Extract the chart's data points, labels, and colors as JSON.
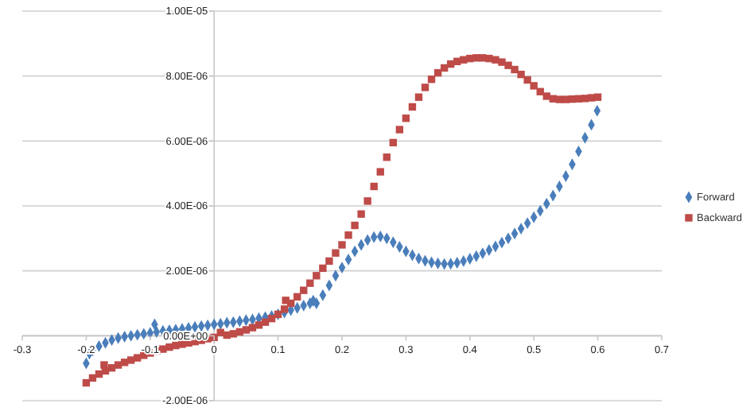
{
  "chart_data": {
    "type": "scatter",
    "xlim": [
      -0.3,
      0.7
    ],
    "xticks": [
      -0.3,
      -0.2,
      -0.1,
      0,
      0.1,
      0.2,
      0.3,
      0.4,
      0.5,
      0.6,
      0.7
    ],
    "ylim": [
      -2e-06,
      1e-05
    ],
    "yticks": [
      {
        "value": -2e-06,
        "label": "-2.00E-06"
      },
      {
        "value": 0,
        "label": "0.00E+00"
      },
      {
        "value": 2e-06,
        "label": "2.00E-06"
      },
      {
        "value": 4e-06,
        "label": "4.00E-06"
      },
      {
        "value": 6e-06,
        "label": "6.00E-06"
      },
      {
        "value": 8e-06,
        "label": "8.00E-06"
      },
      {
        "value": 1e-05,
        "label": "1.00E-05"
      }
    ],
    "grid": "y",
    "legend": "right",
    "series": [
      {
        "name": "Forward",
        "color": "#4a7ebb",
        "marker": "diamond",
        "x": [
          -0.2,
          -0.195,
          -0.19,
          -0.18,
          -0.17,
          -0.16,
          -0.15,
          -0.14,
          -0.13,
          -0.12,
          -0.11,
          -0.1,
          -0.093,
          -0.09,
          -0.08,
          -0.07,
          -0.06,
          -0.05,
          -0.04,
          -0.03,
          -0.02,
          -0.01,
          0,
          0.01,
          0.02,
          0.03,
          0.04,
          0.05,
          0.06,
          0.07,
          0.08,
          0.09,
          0.1,
          0.11,
          0.12,
          0.13,
          0.14,
          0.15,
          0.155,
          0.16,
          0.17,
          0.18,
          0.19,
          0.2,
          0.21,
          0.22,
          0.23,
          0.24,
          0.25,
          0.26,
          0.27,
          0.28,
          0.29,
          0.3,
          0.31,
          0.32,
          0.33,
          0.34,
          0.35,
          0.36,
          0.37,
          0.38,
          0.39,
          0.4,
          0.41,
          0.42,
          0.43,
          0.44,
          0.45,
          0.46,
          0.47,
          0.48,
          0.49,
          0.5,
          0.51,
          0.52,
          0.53,
          0.54,
          0.55,
          0.56,
          0.57,
          0.58,
          0.59,
          0.599
        ],
        "values": [
          -8.5e-07,
          -5.5e-07,
          -4.5e-07,
          -3.2e-07,
          -2.2e-07,
          -1.3e-07,
          -7e-08,
          -3e-08,
          0,
          3e-08,
          6e-08,
          9e-08,
          3.5e-07,
          1.2e-07,
          1.5e-07,
          1.7e-07,
          1.9e-07,
          2.1e-07,
          2.4e-07,
          2.7e-07,
          3e-07,
          3.2e-07,
          3.5e-07,
          3.7e-07,
          4e-07,
          4.2e-07,
          4.5e-07,
          4.8e-07,
          5e-07,
          5.4e-07,
          5.7e-07,
          6.1e-07,
          6.6e-07,
          7.2e-07,
          7.9e-07,
          8.6e-07,
          9.3e-07,
          1e-06,
          1.08e-06,
          1e-06,
          1.25e-06,
          1.55e-06,
          1.85e-06,
          2.1e-06,
          2.35e-06,
          2.6e-06,
          2.8e-06,
          2.95e-06,
          3.04e-06,
          3.06e-06,
          3e-06,
          2.88e-06,
          2.74e-06,
          2.6e-06,
          2.48e-06,
          2.38e-06,
          2.31e-06,
          2.26e-06,
          2.23e-06,
          2.21e-06,
          2.22e-06,
          2.25e-06,
          2.3e-06,
          2.37e-06,
          2.45e-06,
          2.54e-06,
          2.64e-06,
          2.75e-06,
          2.87e-06,
          3e-06,
          3.15e-06,
          3.3e-06,
          3.47e-06,
          3.65e-06,
          3.85e-06,
          4.07e-06,
          4.32e-06,
          4.6e-06,
          4.92e-06,
          5.28e-06,
          5.68e-06,
          6.1e-06,
          6.5e-06,
          6.93e-06
        ]
      },
      {
        "name": "Backward",
        "color": "#be4b48",
        "marker": "square",
        "x": [
          -0.2,
          -0.19,
          -0.18,
          -0.172,
          -0.17,
          -0.16,
          -0.15,
          -0.14,
          -0.13,
          -0.12,
          -0.11,
          -0.1,
          -0.09,
          -0.08,
          -0.07,
          -0.06,
          -0.05,
          -0.04,
          -0.03,
          -0.02,
          -0.01,
          0,
          0.01,
          0.02,
          0.03,
          0.04,
          0.05,
          0.06,
          0.07,
          0.08,
          0.09,
          0.1,
          0.11,
          0.112,
          0.12,
          0.13,
          0.14,
          0.15,
          0.16,
          0.17,
          0.18,
          0.19,
          0.2,
          0.21,
          0.22,
          0.23,
          0.24,
          0.25,
          0.26,
          0.27,
          0.28,
          0.29,
          0.3,
          0.31,
          0.32,
          0.33,
          0.34,
          0.35,
          0.36,
          0.37,
          0.38,
          0.39,
          0.4,
          0.41,
          0.42,
          0.43,
          0.44,
          0.45,
          0.46,
          0.47,
          0.48,
          0.49,
          0.5,
          0.51,
          0.52,
          0.53,
          0.54,
          0.55,
          0.56,
          0.57,
          0.58,
          0.59,
          0.6
        ],
        "values": [
          -1.45e-06,
          -1.3e-06,
          -1.18e-06,
          -9e-07,
          -1.08e-06,
          -9.9e-07,
          -9e-07,
          -8.2e-07,
          -7.5e-07,
          -6.8e-07,
          -6e-07,
          -5.3e-07,
          -4.7e-07,
          -4.1e-07,
          -3.5e-07,
          -3e-07,
          -2.6e-07,
          -2.2e-07,
          -1.8e-07,
          -1.4e-07,
          -9e-08,
          -5e-08,
          1e-07,
          2e-08,
          6e-08,
          1.2e-07,
          1.8e-07,
          2.5e-07,
          3.3e-07,
          4.2e-07,
          5.3e-07,
          6.6e-07,
          8.2e-07,
          1.09e-06,
          1e-06,
          1.2e-06,
          1.4e-06,
          1.62e-06,
          1.85e-06,
          2.08e-06,
          2.3e-06,
          2.55e-06,
          2.8e-06,
          3.1e-06,
          3.4e-06,
          3.75e-06,
          4.15e-06,
          4.6e-06,
          5.05e-06,
          5.5e-06,
          5.95e-06,
          6.35e-06,
          6.7e-06,
          7.05e-06,
          7.35e-06,
          7.65e-06,
          7.9e-06,
          8.1e-06,
          8.25e-06,
          8.37e-06,
          8.45e-06,
          8.5e-06,
          8.54e-06,
          8.56e-06,
          8.56e-06,
          8.54e-06,
          8.5e-06,
          8.43e-06,
          8.33e-06,
          8.2e-06,
          8.05e-06,
          7.88e-06,
          7.7e-06,
          7.52e-06,
          7.38e-06,
          7.3e-06,
          7.28e-06,
          7.28e-06,
          7.29e-06,
          7.3e-06,
          7.31e-06,
          7.33e-06,
          7.35e-06
        ]
      }
    ]
  }
}
